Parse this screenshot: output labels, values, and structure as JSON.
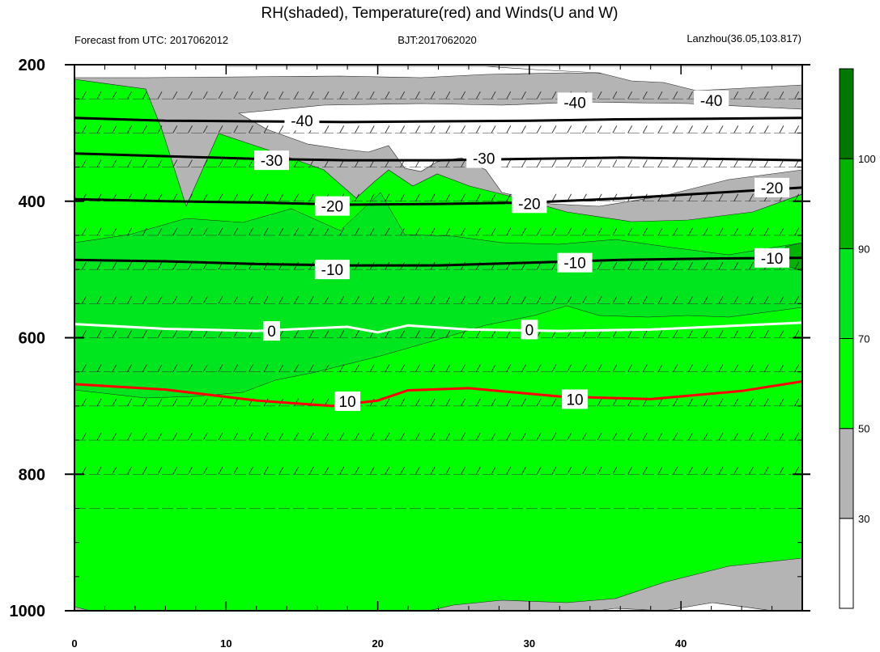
{
  "chart_data": {
    "type": "heatmap",
    "title": "RH(shaded), Temperature(red) and Winds(U and W)",
    "subtitle_left": "Forecast from UTC: 2017062012",
    "subtitle_center": "BJT:2017062020",
    "subtitle_right": "Lanzhou(36.05,103.817)",
    "xlabel": "",
    "ylabel": "",
    "x_range": [
      0,
      48
    ],
    "y_range": [
      200,
      1000
    ],
    "x_ticks": [
      "0",
      "10",
      "20",
      "30",
      "40"
    ],
    "y_ticks": [
      "200",
      "400",
      "600",
      "800",
      "1000"
    ],
    "colorbar": {
      "labels": [
        "30",
        "50",
        "70",
        "90",
        "100"
      ],
      "bins": [
        {
          "min": 0,
          "max": 30,
          "color": "#ffffff"
        },
        {
          "min": 30,
          "max": 50,
          "color": "#b4b4b4"
        },
        {
          "min": 50,
          "max": 70,
          "color": "#00ff00"
        },
        {
          "min": 70,
          "max": 90,
          "color": "#00e61e"
        },
        {
          "min": 90,
          "max": 100,
          "color": "#00b400"
        },
        {
          "min": 100,
          "max": 110,
          "color": "#007800"
        }
      ]
    },
    "temperature_contours": [
      {
        "value": -40,
        "color": "#000000",
        "label": "-40",
        "label_positions": [
          [
            15,
            282
          ],
          [
            33,
            255
          ],
          [
            42,
            252
          ]
        ],
        "points": [
          [
            0,
            278
          ],
          [
            6,
            282
          ],
          [
            12,
            283
          ],
          [
            18,
            284
          ],
          [
            24,
            283
          ],
          [
            30,
            282
          ],
          [
            36,
            280
          ],
          [
            42,
            279
          ],
          [
            48,
            278
          ]
        ]
      },
      {
        "value": -30,
        "color": "#000000",
        "label": "-30",
        "label_positions": [
          [
            13,
            340
          ],
          [
            27,
            337
          ]
        ],
        "points": [
          [
            0,
            330
          ],
          [
            6,
            334
          ],
          [
            12,
            338
          ],
          [
            18,
            340
          ],
          [
            24,
            340
          ],
          [
            30,
            338
          ],
          [
            36,
            336
          ],
          [
            42,
            338
          ],
          [
            48,
            340
          ]
        ]
      },
      {
        "value": -20,
        "color": "#000000",
        "label": "-20",
        "label_positions": [
          [
            17,
            407
          ],
          [
            30,
            403
          ],
          [
            46,
            380
          ]
        ],
        "points": [
          [
            0,
            397
          ],
          [
            6,
            400
          ],
          [
            12,
            402
          ],
          [
            18,
            405
          ],
          [
            24,
            404
          ],
          [
            30,
            402
          ],
          [
            36,
            396
          ],
          [
            42,
            388
          ],
          [
            48,
            380
          ]
        ]
      },
      {
        "value": -10,
        "color": "#000000",
        "label": "-10",
        "label_positions": [
          [
            17,
            500
          ],
          [
            33,
            490
          ],
          [
            46,
            483
          ]
        ],
        "points": [
          [
            0,
            486
          ],
          [
            6,
            488
          ],
          [
            12,
            492
          ],
          [
            18,
            494
          ],
          [
            24,
            494
          ],
          [
            30,
            490
          ],
          [
            36,
            486
          ],
          [
            42,
            484
          ],
          [
            48,
            483
          ]
        ]
      },
      {
        "value": 0,
        "color": "#ffffff",
        "label": "0",
        "label_positions": [
          [
            13,
            590
          ],
          [
            30,
            588
          ]
        ],
        "points": [
          [
            0,
            580
          ],
          [
            6,
            587
          ],
          [
            12,
            590
          ],
          [
            18,
            584
          ],
          [
            20,
            592
          ],
          [
            22,
            582
          ],
          [
            26,
            588
          ],
          [
            32,
            590
          ],
          [
            38,
            588
          ],
          [
            44,
            582
          ],
          [
            48,
            578
          ]
        ]
      },
      {
        "value": 10,
        "color": "#ff0000",
        "label": "10",
        "label_positions": [
          [
            18,
            693
          ],
          [
            33,
            690
          ]
        ],
        "points": [
          [
            0,
            668
          ],
          [
            6,
            676
          ],
          [
            12,
            692
          ],
          [
            17,
            700
          ],
          [
            20,
            692
          ],
          [
            22,
            677
          ],
          [
            26,
            674
          ],
          [
            32,
            686
          ],
          [
            38,
            690
          ],
          [
            44,
            678
          ],
          [
            48,
            664
          ]
        ]
      }
    ],
    "series": [
      {
        "name": "Temperature(red)",
        "values": [
          10
        ]
      },
      {
        "name": "Winds(U and W)",
        "values": []
      }
    ]
  }
}
